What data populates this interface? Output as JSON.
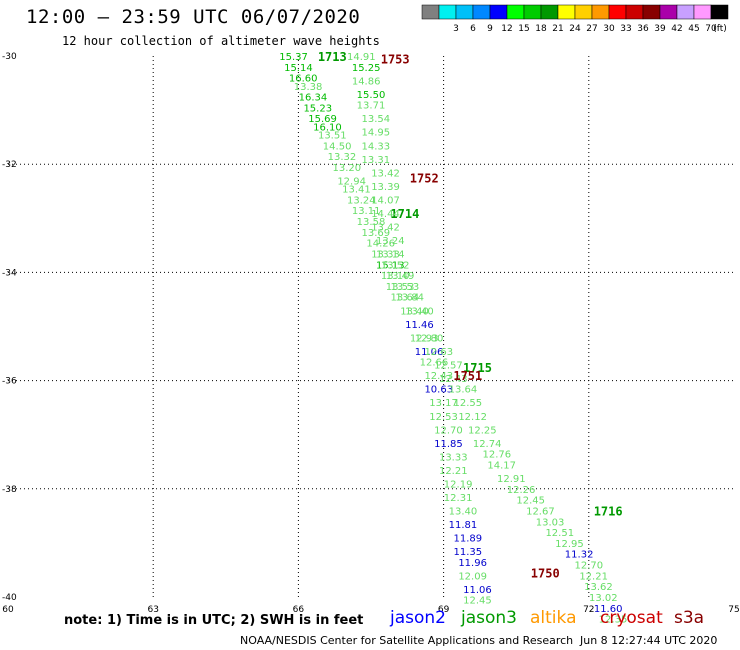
{
  "header": {
    "title": "12:00 – 23:59 UTC 06/07/2020",
    "subtitle": "12 hour collection of altimeter wave heights"
  },
  "colorbar": {
    "unit": "(ft)",
    "swatches": [
      {
        "color": "#808080",
        "label": ""
      },
      {
        "color": "#00f0f0",
        "label": "3"
      },
      {
        "color": "#00c0f8",
        "label": "6"
      },
      {
        "color": "#0088ff",
        "label": "9"
      },
      {
        "color": "#0000ff",
        "label": "12"
      },
      {
        "color": "#00ff00",
        "label": "15"
      },
      {
        "color": "#00cc00",
        "label": "18"
      },
      {
        "color": "#009900",
        "label": "21"
      },
      {
        "color": "#ffff00",
        "label": "24"
      },
      {
        "color": "#ffd000",
        "label": "27"
      },
      {
        "color": "#ff9900",
        "label": "30"
      },
      {
        "color": "#ff0000",
        "label": "33"
      },
      {
        "color": "#cc0000",
        "label": "36"
      },
      {
        "color": "#880000",
        "label": "39"
      },
      {
        "color": "#aa00aa",
        "label": "42"
      },
      {
        "color": "#c8a0ff",
        "label": "45"
      },
      {
        "color": "#ff99ff",
        "label": "70"
      },
      {
        "color": "#000000",
        "label": ""
      }
    ]
  },
  "map": {
    "lon_range": [
      60,
      75
    ],
    "lat_range": [
      -40,
      -30
    ],
    "lon_ticks": [
      "60",
      "63",
      "66",
      "69",
      "72",
      "75"
    ],
    "lat_ticks": [
      "-30",
      "-32",
      "-34",
      "-36",
      "-38",
      "-40"
    ],
    "grid": true
  },
  "chart_data": {
    "type": "scatter",
    "x_axis": {
      "range": [
        60,
        75
      ],
      "ticks": [
        60,
        63,
        66,
        69,
        72,
        75
      ]
    },
    "y_axis": {
      "range": [
        -40,
        -30
      ],
      "ticks": [
        -30,
        -32,
        -34,
        -36,
        -38,
        -40
      ]
    },
    "tracks": [
      {
        "satellite": "jason3",
        "color": "#009900",
        "time_labels": [
          {
            "text": "1713",
            "lon": 66.7,
            "lat": -30.0
          },
          {
            "text": "1714",
            "lon": 68.2,
            "lat": -32.9
          }
        ],
        "points": [
          {
            "lon": 65.9,
            "lat": -30.0,
            "v": "15.37",
            "c": "#00bb00"
          },
          {
            "lon": 66.0,
            "lat": -30.2,
            "v": "15.14",
            "c": "#00bb00"
          },
          {
            "lon": 66.1,
            "lat": -30.4,
            "v": "16.60",
            "c": "#00bb00"
          },
          {
            "lon": 66.2,
            "lat": -30.55,
            "v": "13.38",
            "c": "#66dd66"
          },
          {
            "lon": 66.3,
            "lat": -30.75,
            "v": "16.34",
            "c": "#00bb00"
          },
          {
            "lon": 66.4,
            "lat": -30.95,
            "v": "15.23",
            "c": "#00bb00"
          },
          {
            "lon": 66.5,
            "lat": -31.15,
            "v": "15.69",
            "c": "#00bb00"
          },
          {
            "lon": 66.6,
            "lat": -31.3,
            "v": "16.10",
            "c": "#00bb00"
          },
          {
            "lon": 66.7,
            "lat": -31.45,
            "v": "13.51",
            "c": "#66dd66"
          },
          {
            "lon": 66.8,
            "lat": -31.65,
            "v": "14.50",
            "c": "#66dd66"
          },
          {
            "lon": 66.9,
            "lat": -31.85,
            "v": "13.32",
            "c": "#66dd66"
          },
          {
            "lon": 67.0,
            "lat": -32.05,
            "v": "13.20",
            "c": "#66dd66"
          },
          {
            "lon": 67.1,
            "lat": -32.3,
            "v": "12.94",
            "c": "#66dd66"
          },
          {
            "lon": 67.2,
            "lat": -32.45,
            "v": "13.41",
            "c": "#66dd66"
          },
          {
            "lon": 67.3,
            "lat": -32.65,
            "v": "13.24",
            "c": "#66dd66"
          },
          {
            "lon": 67.4,
            "lat": -32.85,
            "v": "13.11",
            "c": "#66dd66"
          },
          {
            "lon": 67.5,
            "lat": -33.05,
            "v": "13.58",
            "c": "#66dd66"
          },
          {
            "lon": 67.6,
            "lat": -33.25,
            "v": "13.69",
            "c": "#66dd66"
          },
          {
            "lon": 67.7,
            "lat": -33.45,
            "v": "14.26",
            "c": "#66dd66"
          },
          {
            "lon": 67.8,
            "lat": -33.65,
            "v": "13.33",
            "c": "#66dd66"
          },
          {
            "lon": 67.9,
            "lat": -33.85,
            "v": "15.13",
            "c": "#00bb00"
          },
          {
            "lon": 68.0,
            "lat": -34.05,
            "v": "13.10",
            "c": "#66dd66"
          },
          {
            "lon": 68.1,
            "lat": -34.25,
            "v": "13.53",
            "c": "#66dd66"
          },
          {
            "lon": 68.2,
            "lat": -34.45,
            "v": "13.64",
            "c": "#66dd66"
          },
          {
            "lon": 68.4,
            "lat": -34.7,
            "v": "13.40",
            "c": "#66dd66"
          },
          {
            "lon": 68.5,
            "lat": -34.95,
            "v": "11.46",
            "c": "#0000cc"
          },
          {
            "lon": 68.6,
            "lat": -35.2,
            "v": "12.93",
            "c": "#66dd66"
          },
          {
            "lon": 68.7,
            "lat": -35.45,
            "v": "11.06",
            "c": "#0000cc"
          },
          {
            "lon": 68.8,
            "lat": -35.65,
            "v": "12.66",
            "c": "#66dd66"
          },
          {
            "lon": 68.9,
            "lat": -35.9,
            "v": "12.43",
            "c": "#66dd66"
          },
          {
            "lon": 68.9,
            "lat": -36.15,
            "v": "10.63",
            "c": "#0000cc"
          },
          {
            "lon": 69.0,
            "lat": -36.4,
            "v": "13.17",
            "c": "#66dd66"
          },
          {
            "lon": 69.0,
            "lat": -36.65,
            "v": "12.53",
            "c": "#66dd66"
          },
          {
            "lon": 69.1,
            "lat": -36.9,
            "v": "12.70",
            "c": "#66dd66"
          },
          {
            "lon": 69.1,
            "lat": -37.15,
            "v": "11.85",
            "c": "#0000cc"
          },
          {
            "lon": 69.2,
            "lat": -37.4,
            "v": "13.33",
            "c": "#66dd66"
          },
          {
            "lon": 69.2,
            "lat": -37.65,
            "v": "12.21",
            "c": "#66dd66"
          },
          {
            "lon": 69.3,
            "lat": -37.9,
            "v": "12.19",
            "c": "#66dd66"
          },
          {
            "lon": 69.3,
            "lat": -38.15,
            "v": "12.31",
            "c": "#66dd66"
          },
          {
            "lon": 69.4,
            "lat": -38.4,
            "v": "13.40",
            "c": "#66dd66"
          },
          {
            "lon": 69.4,
            "lat": -38.65,
            "v": "11.81",
            "c": "#0000cc"
          },
          {
            "lon": 69.5,
            "lat": -38.9,
            "v": "11.89",
            "c": "#0000cc"
          },
          {
            "lon": 69.5,
            "lat": -39.15,
            "v": "11.35",
            "c": "#0000cc"
          },
          {
            "lon": 69.6,
            "lat": -39.35,
            "v": "11.96",
            "c": "#0000cc"
          },
          {
            "lon": 69.6,
            "lat": -39.6,
            "v": "12.09",
            "c": "#66dd66"
          },
          {
            "lon": 69.7,
            "lat": -39.85,
            "v": "11.06",
            "c": "#0000cc"
          },
          {
            "lon": 69.7,
            "lat": -40.05,
            "v": "12.45",
            "c": "#66dd66"
          }
        ]
      },
      {
        "satellite": "jason3",
        "color": "#009900",
        "time_labels": [
          {
            "text": "1715",
            "lon": 69.7,
            "lat": -35.75
          },
          {
            "text": "1716",
            "lon": 72.4,
            "lat": -38.4
          }
        ],
        "points": [
          {
            "lon": 69.1,
            "lat": -35.7,
            "v": "12.57",
            "c": "#66dd66"
          },
          {
            "lon": 69.2,
            "lat": -35.95,
            "v": "12.43",
            "c": "#66dd66"
          },
          {
            "lon": 69.4,
            "lat": -36.15,
            "v": "13.64",
            "c": "#66dd66"
          },
          {
            "lon": 69.5,
            "lat": -36.4,
            "v": "12.55",
            "c": "#66dd66"
          },
          {
            "lon": 69.6,
            "lat": -36.65,
            "v": "12.12",
            "c": "#66dd66"
          },
          {
            "lon": 69.8,
            "lat": -36.9,
            "v": "12.25",
            "c": "#66dd66"
          },
          {
            "lon": 69.9,
            "lat": -37.15,
            "v": "12.74",
            "c": "#66dd66"
          },
          {
            "lon": 70.1,
            "lat": -37.35,
            "v": "12.76",
            "c": "#66dd66"
          },
          {
            "lon": 70.2,
            "lat": -37.55,
            "v": "14.17",
            "c": "#66dd66"
          },
          {
            "lon": 70.4,
            "lat": -37.8,
            "v": "12.91",
            "c": "#66dd66"
          },
          {
            "lon": 70.6,
            "lat": -38.0,
            "v": "12.26",
            "c": "#66dd66"
          },
          {
            "lon": 70.8,
            "lat": -38.2,
            "v": "12.45",
            "c": "#66dd66"
          },
          {
            "lon": 71.0,
            "lat": -38.4,
            "v": "12.67",
            "c": "#66dd66"
          },
          {
            "lon": 71.2,
            "lat": -38.6,
            "v": "13.03",
            "c": "#66dd66"
          },
          {
            "lon": 71.4,
            "lat": -38.8,
            "v": "12.51",
            "c": "#66dd66"
          },
          {
            "lon": 71.6,
            "lat": -39.0,
            "v": "12.95",
            "c": "#66dd66"
          },
          {
            "lon": 71.8,
            "lat": -39.2,
            "v": "11.32",
            "c": "#0000cc"
          },
          {
            "lon": 72.0,
            "lat": -39.4,
            "v": "12.70",
            "c": "#66dd66"
          },
          {
            "lon": 72.1,
            "lat": -39.6,
            "v": "12.21",
            "c": "#66dd66"
          },
          {
            "lon": 72.2,
            "lat": -39.8,
            "v": "13.62",
            "c": "#66dd66"
          },
          {
            "lon": 72.3,
            "lat": -40.0,
            "v": "13.02",
            "c": "#66dd66"
          },
          {
            "lon": 72.4,
            "lat": -40.2,
            "v": "11.60",
            "c": "#0000cc"
          },
          {
            "lon": 72.5,
            "lat": -40.4,
            "v": "12.35",
            "c": "#66dd66"
          }
        ]
      },
      {
        "satellite": "cryosat",
        "color": "#880000",
        "time_labels": [
          {
            "text": "1753",
            "lon": 68.0,
            "lat": -30.05
          },
          {
            "text": "1752",
            "lon": 68.6,
            "lat": -32.25
          },
          {
            "text": "1751",
            "lon": 69.5,
            "lat": -35.9
          },
          {
            "text": "1750",
            "lon": 71.1,
            "lat": -39.55
          }
        ],
        "points": [
          {
            "lon": 67.3,
            "lat": -30.0,
            "v": "14.91",
            "c": "#66dd66"
          },
          {
            "lon": 67.4,
            "lat": -30.2,
            "v": "15.25",
            "c": "#00bb00"
          },
          {
            "lon": 67.4,
            "lat": -30.45,
            "v": "14.86",
            "c": "#66dd66"
          },
          {
            "lon": 67.5,
            "lat": -30.7,
            "v": "15.50",
            "c": "#00bb00"
          },
          {
            "lon": 67.5,
            "lat": -30.9,
            "v": "13.71",
            "c": "#66dd66"
          },
          {
            "lon": 67.6,
            "lat": -31.15,
            "v": "13.54",
            "c": "#66dd66"
          },
          {
            "lon": 67.6,
            "lat": -31.4,
            "v": "14.95",
            "c": "#66dd66"
          },
          {
            "lon": 67.6,
            "lat": -31.65,
            "v": "14.33",
            "c": "#66dd66"
          },
          {
            "lon": 67.6,
            "lat": -31.9,
            "v": "13.31",
            "c": "#66dd66"
          },
          {
            "lon": 67.8,
            "lat": -32.15,
            "v": "13.42",
            "c": "#66dd66"
          },
          {
            "lon": 67.8,
            "lat": -32.4,
            "v": "13.39",
            "c": "#66dd66"
          },
          {
            "lon": 67.8,
            "lat": -32.65,
            "v": "14.07",
            "c": "#66dd66"
          },
          {
            "lon": 67.8,
            "lat": -32.9,
            "v": "14.44",
            "c": "#66dd66"
          },
          {
            "lon": 67.8,
            "lat": -33.15,
            "v": "13.42",
            "c": "#66dd66"
          },
          {
            "lon": 67.9,
            "lat": -33.4,
            "v": "13.24",
            "c": "#66dd66"
          },
          {
            "lon": 67.9,
            "lat": -33.65,
            "v": "13.14",
            "c": "#66dd66"
          },
          {
            "lon": 68.0,
            "lat": -33.85,
            "v": "13.52",
            "c": "#66dd66"
          },
          {
            "lon": 68.1,
            "lat": -34.05,
            "v": "13.49",
            "c": "#66dd66"
          },
          {
            "lon": 68.2,
            "lat": -34.25,
            "v": "13.53",
            "c": "#66dd66"
          },
          {
            "lon": 68.3,
            "lat": -34.45,
            "v": "13.84",
            "c": "#66dd66"
          },
          {
            "lon": 68.5,
            "lat": -34.7,
            "v": "13.40",
            "c": "#66dd66"
          },
          {
            "lon": 68.7,
            "lat": -35.2,
            "v": "12.80",
            "c": "#66dd66"
          },
          {
            "lon": 68.9,
            "lat": -35.45,
            "v": "12.63",
            "c": "#66dd66"
          }
        ]
      }
    ]
  },
  "notes": {
    "text": "note: 1) Time is in UTC; 2) SWH is in feet"
  },
  "legend": [
    {
      "label": "jason2",
      "color": "#0000ff"
    },
    {
      "label": "jason3",
      "color": "#009900"
    },
    {
      "label": "altika",
      "color": "#ff9900"
    },
    {
      "label": "cryosat",
      "color": "#cc0000"
    },
    {
      "label": "s3a",
      "color": "#880000"
    }
  ],
  "footer": {
    "agency": "NOAA/NESDIS Center for Satellite Applications and Research",
    "timestamp": "Jun  8 12:27:44 UTC 2020"
  }
}
